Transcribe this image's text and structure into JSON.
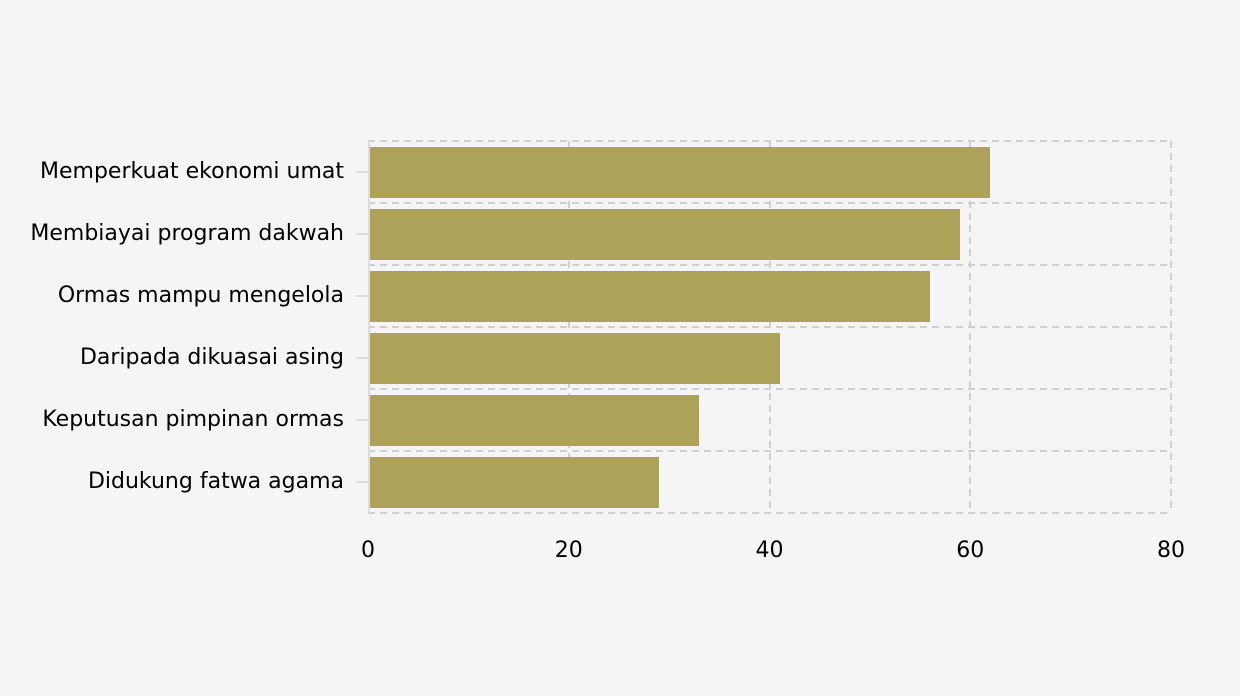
{
  "chart_data": {
    "type": "bar",
    "orientation": "horizontal",
    "title": "",
    "categories": [
      "Memperkuat ekonomi umat",
      "Membiayai program dakwah",
      "Ormas mampu mengelola",
      "Daripada dikuasai asing",
      "Keputusan pimpinan ormas",
      "Didukung fatwa agama"
    ],
    "values": [
      62,
      59,
      56,
      41,
      33,
      29
    ],
    "xlim": [
      0,
      80
    ],
    "xticks": [
      0,
      20,
      40,
      60,
      80
    ],
    "grid": "dashed",
    "legend": "none",
    "colors": {
      "bar": "#aea15a",
      "background": "#f5f5f5",
      "gridline": "#cfcfcf",
      "axis": "#dcdcdc",
      "text": "#000000"
    }
  }
}
